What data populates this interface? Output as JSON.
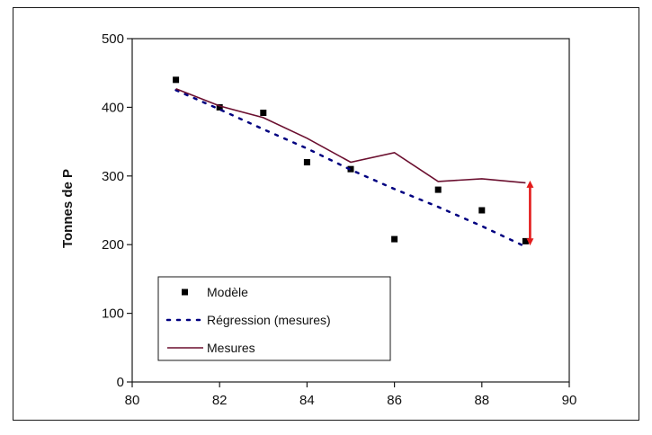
{
  "chart_data": {
    "type": "line",
    "xlabel": "",
    "ylabel": "Tonnes de P",
    "xlim": [
      80,
      90
    ],
    "ylim": [
      0,
      500
    ],
    "xticks": [
      80,
      82,
      84,
      86,
      88,
      90
    ],
    "yticks": [
      0,
      100,
      200,
      300,
      400,
      500
    ],
    "grid": false,
    "legend": "bottom-left",
    "series": [
      {
        "name": "Modèle",
        "style": "markers",
        "color": "#000000",
        "x": [
          81,
          82,
          83,
          84,
          85,
          86,
          87,
          88,
          89
        ],
        "y": [
          440,
          400,
          392,
          320,
          310,
          208,
          280,
          250,
          205
        ]
      },
      {
        "name": "Régression (mesures)",
        "style": "dotted",
        "color": "#000080",
        "x": [
          81,
          82,
          83,
          84,
          85,
          86,
          87,
          88,
          89
        ],
        "y": [
          425,
          397,
          368,
          340,
          309,
          281,
          255,
          227,
          197
        ]
      },
      {
        "name": "Mesures",
        "style": "line",
        "color": "#6b0f2f",
        "x": [
          81,
          82,
          83,
          84,
          85,
          86,
          87,
          88,
          89
        ],
        "y": [
          427,
          402,
          385,
          355,
          320,
          334,
          292,
          296,
          290
        ]
      }
    ],
    "annotations": [
      {
        "type": "double-arrow",
        "color": "#e31b1b",
        "x": 89,
        "y_from": 200,
        "y_to": 292
      }
    ]
  }
}
